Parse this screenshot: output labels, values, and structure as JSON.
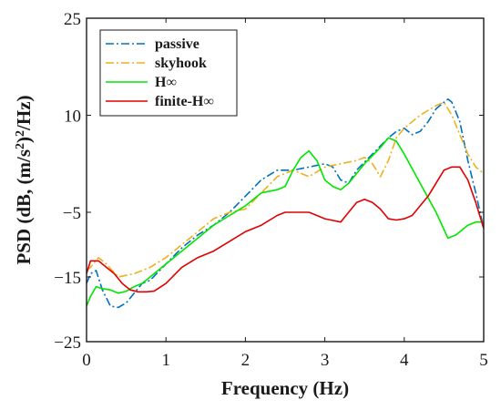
{
  "chart_data": {
    "type": "line",
    "title": "",
    "xlabel": "Frequency (Hz)",
    "ylabel_parts": [
      "PSD (dB, (m/s",
      "2",
      ")",
      "2",
      "/Hz)"
    ],
    "xlim": [
      0,
      5
    ],
    "ylim": [
      -25,
      25
    ],
    "xticks": [
      0,
      1,
      2,
      3,
      4,
      5
    ],
    "xtick_labels": [
      "0",
      "1",
      "2",
      "3",
      "4",
      "5"
    ],
    "yticks": [
      -25,
      -15,
      -5,
      10,
      25
    ],
    "ytick_labels": [
      "−25",
      "−15",
      "−5",
      "10",
      "25"
    ],
    "grid": false,
    "legend_position": "top-left",
    "series": [
      {
        "name": "passive",
        "color": "#0072BD",
        "dash": "dashdot",
        "x": [
          0,
          0.05,
          0.12,
          0.2,
          0.3,
          0.4,
          0.5,
          0.6,
          0.7,
          0.8,
          1.0,
          1.2,
          1.4,
          1.6,
          1.8,
          2.0,
          2.2,
          2.4,
          2.6,
          2.8,
          3.0,
          3.1,
          3.2,
          3.3,
          3.4,
          3.6,
          3.8,
          3.9,
          4.0,
          4.1,
          4.2,
          4.3,
          4.4,
          4.5,
          4.55,
          4.6,
          4.7,
          4.8,
          4.9,
          5.0
        ],
        "y": [
          -16,
          -14.5,
          -14,
          -17,
          -19.5,
          -19.7,
          -19,
          -17.5,
          -16,
          -15.5,
          -13,
          -10.5,
          -8.5,
          -7,
          -5,
          -2.5,
          0,
          1.5,
          1.5,
          2,
          2.5,
          2,
          0,
          -0.5,
          1.5,
          4,
          6.5,
          7.5,
          8,
          7,
          7.5,
          9,
          11,
          12,
          12.5,
          12,
          9,
          3,
          -2,
          -7.5
        ]
      },
      {
        "name": "skyhook",
        "color": "#EDB120",
        "dash": "dashdot",
        "x": [
          0,
          0.05,
          0.15,
          0.25,
          0.4,
          0.6,
          0.8,
          1.0,
          1.2,
          1.4,
          1.6,
          1.8,
          2.0,
          2.2,
          2.4,
          2.6,
          2.8,
          3.0,
          3.2,
          3.4,
          3.5,
          3.6,
          3.7,
          3.8,
          3.9,
          4.0,
          4.2,
          4.4,
          4.5,
          4.6,
          4.7,
          4.8,
          4.9,
          5.0
        ],
        "y": [
          -14,
          -13.5,
          -12,
          -13,
          -15,
          -14.5,
          -13.5,
          -12,
          -10,
          -8,
          -6,
          -5,
          -4.5,
          -2,
          0.5,
          1.5,
          0.5,
          2,
          2.5,
          3,
          3.5,
          2.5,
          0.5,
          3,
          6.5,
          8,
          10,
          11.5,
          12,
          10,
          7,
          4,
          2,
          1
        ]
      },
      {
        "name": "H∞",
        "color": "#00E600",
        "dash": "solid",
        "x": [
          0,
          0.05,
          0.12,
          0.2,
          0.3,
          0.4,
          0.5,
          0.6,
          0.7,
          0.8,
          1.0,
          1.2,
          1.4,
          1.6,
          1.8,
          2.0,
          2.2,
          2.4,
          2.5,
          2.6,
          2.7,
          2.8,
          2.9,
          3.0,
          3.1,
          3.2,
          3.3,
          3.5,
          3.7,
          3.8,
          3.9,
          4.0,
          4.2,
          4.4,
          4.55,
          4.65,
          4.8,
          4.9,
          5.0
        ],
        "y": [
          -19.5,
          -18,
          -16.5,
          -16.8,
          -17,
          -17.5,
          -17.2,
          -16.5,
          -16,
          -15,
          -13,
          -11,
          -9,
          -7,
          -5.5,
          -4,
          -2,
          -1.5,
          -1,
          1.5,
          3.5,
          4.5,
          3,
          0,
          -1,
          -1.5,
          -0.5,
          2.5,
          5,
          6.5,
          6,
          4,
          -0.5,
          -5,
          -9,
          -8.5,
          -7,
          -6.5,
          -6.5
        ]
      },
      {
        "name": "finite-H∞",
        "color": "#E00000",
        "dash": "solid",
        "x": [
          0,
          0.05,
          0.15,
          0.25,
          0.35,
          0.45,
          0.55,
          0.65,
          0.75,
          0.85,
          1.0,
          1.2,
          1.4,
          1.6,
          1.8,
          2.0,
          2.2,
          2.4,
          2.5,
          2.6,
          2.8,
          2.9,
          3.0,
          3.2,
          3.4,
          3.5,
          3.6,
          3.7,
          3.8,
          3.9,
          4.0,
          4.1,
          4.2,
          4.3,
          4.4,
          4.5,
          4.6,
          4.7,
          4.8,
          4.9,
          5.0
        ],
        "y": [
          -14.5,
          -12.5,
          -12.5,
          -13.5,
          -14.5,
          -16,
          -17,
          -17.3,
          -17.3,
          -17.2,
          -16,
          -13.5,
          -12,
          -11,
          -9.5,
          -8,
          -7,
          -5.5,
          -5,
          -5,
          -5,
          -5.5,
          -6,
          -6.5,
          -3.5,
          -3,
          -3.5,
          -4.5,
          -6,
          -6.2,
          -6,
          -5.5,
          -4,
          -2.5,
          -0.5,
          1.5,
          2,
          2,
          0,
          -3.5,
          -7.5
        ]
      }
    ]
  }
}
